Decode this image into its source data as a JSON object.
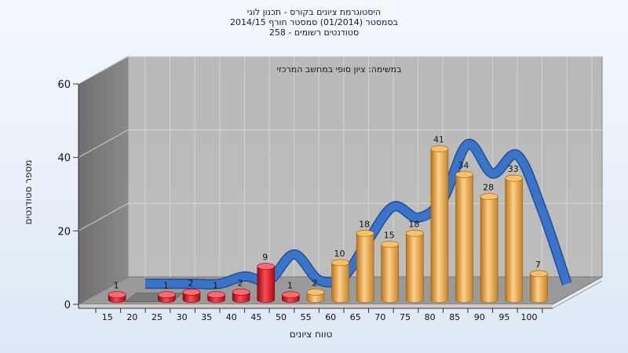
{
  "chart_data": {
    "type": "bar",
    "title_lines": [
      "היסטוגרמת ציונים בקורס - תכנון לוגי",
      "בסמסטר  (01/2014)  סמסטר חורף 2014/15",
      "סטודנטים רשומים - 258"
    ],
    "subtitle": "במשימה: ציון סופי במחשב המרכזי",
    "xlabel": "טווח ציונים",
    "ylabel": "מספר סטודנטים",
    "y_ticks": [
      "0",
      "20",
      "40",
      "60"
    ],
    "ylim": [
      0,
      60
    ],
    "categories": [
      "15",
      "20",
      "25",
      "30",
      "35",
      "40",
      "45",
      "50",
      "55",
      "60",
      "65",
      "70",
      "75",
      "80",
      "85",
      "90",
      "95",
      "100"
    ],
    "values": [
      1,
      0,
      1,
      2,
      1,
      2,
      9,
      1,
      2,
      10,
      18,
      15,
      18,
      41,
      34,
      28,
      33,
      7
    ],
    "value_labels": [
      "1",
      "",
      "1",
      "2",
      "1",
      "2",
      "9",
      "1",
      "2",
      "10",
      "18",
      "15",
      "18",
      "41",
      "34",
      "28",
      "33",
      "7"
    ],
    "bar_colors": [
      "#e0141c",
      "#7a7a7a",
      "#e0141c",
      "#e0141c",
      "#e0141c",
      "#e0141c",
      "#e0141c",
      "#e0141c",
      "#e6a23c",
      "#e6a23c",
      "#e6a23c",
      "#e6a23c",
      "#e6a23c",
      "#e6a23c",
      "#e6a23c",
      "#e6a23c",
      "#e6a23c",
      "#e6a23c"
    ],
    "trend_line": {
      "color": "#3a74c8",
      "values": [
        0,
        0,
        0,
        0,
        2,
        1,
        8,
        1,
        2,
        12,
        21,
        18,
        23,
        38,
        30,
        35,
        20,
        0
      ]
    },
    "grid": true,
    "legend": "none",
    "colors": {
      "fail": "#e0141c",
      "pass": "#e6a23c",
      "zero": "#7a7a7a",
      "trend": "#3a74c8",
      "wall": "#a8a8a8"
    }
  }
}
